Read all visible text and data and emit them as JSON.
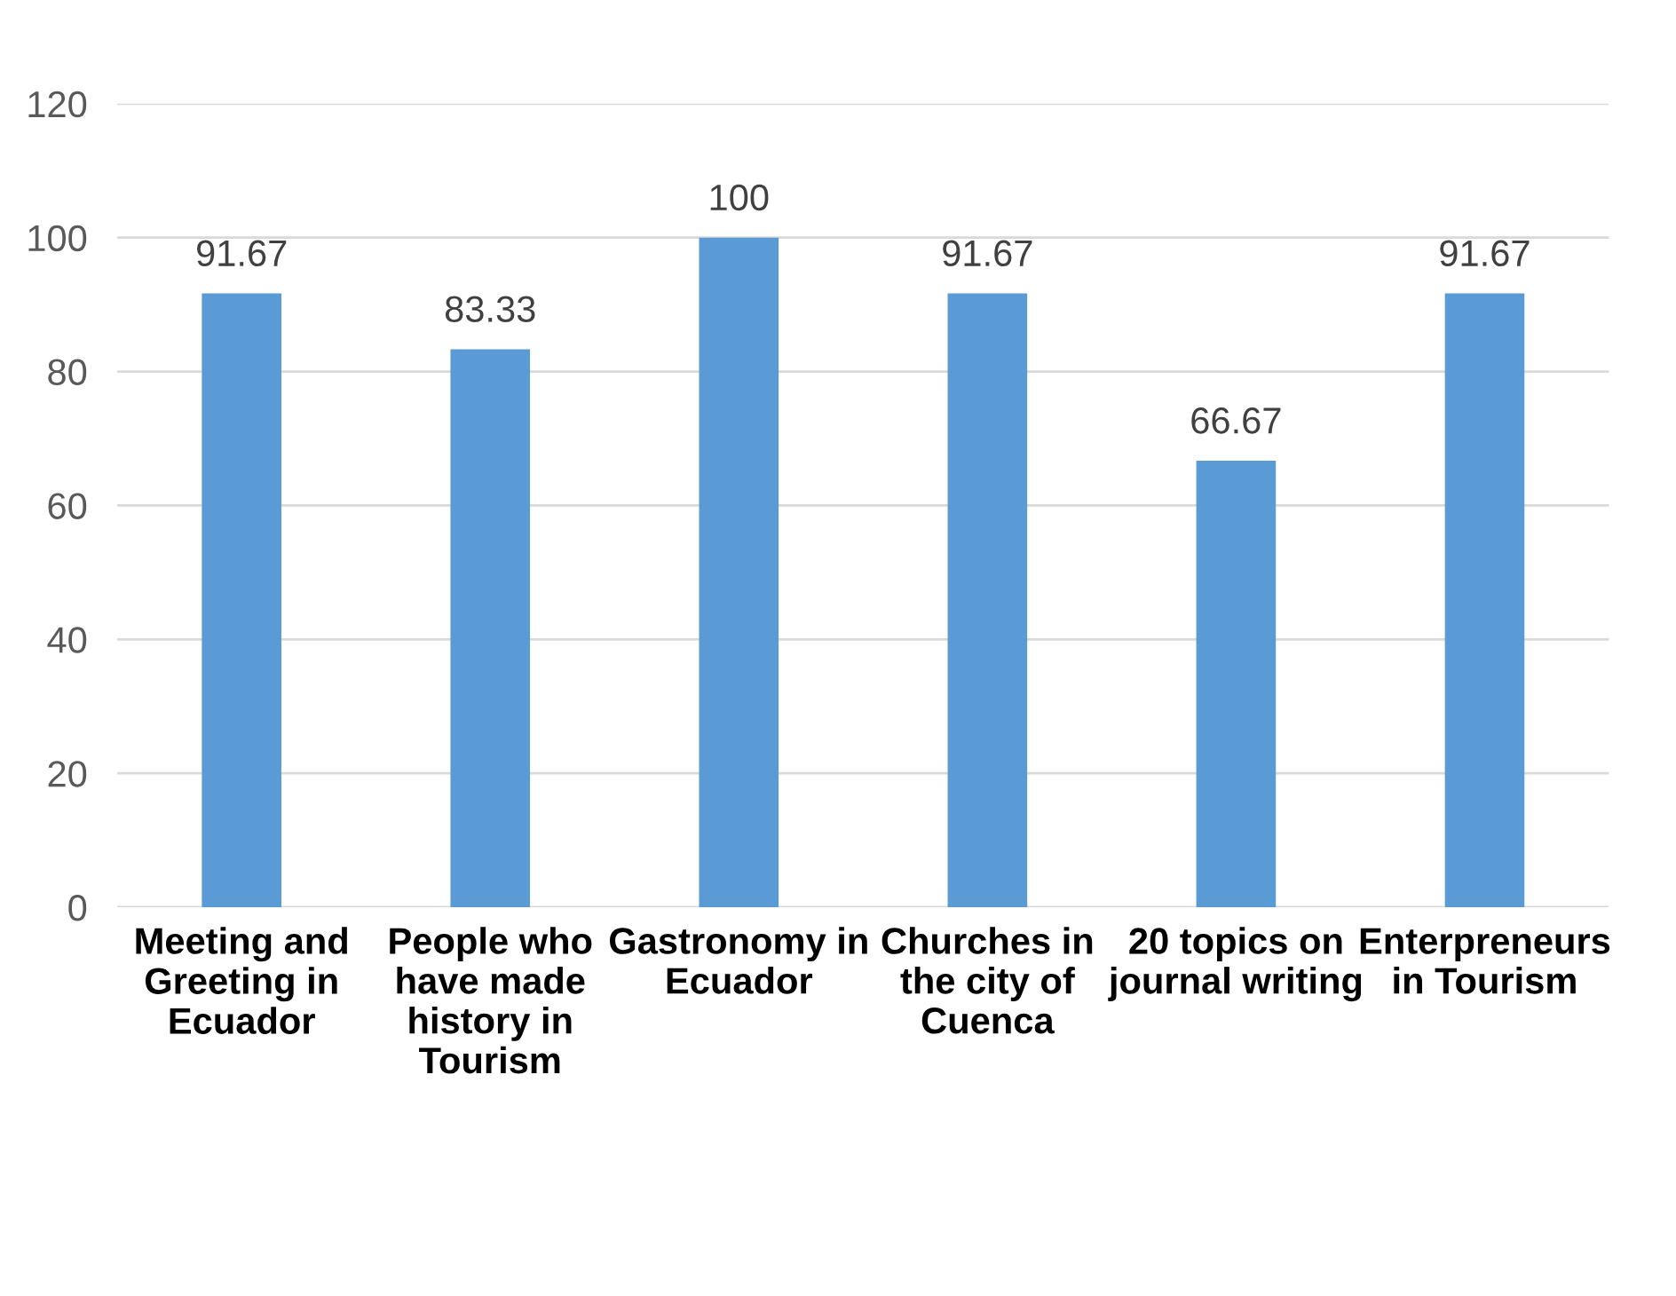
{
  "chart_data": {
    "type": "bar",
    "categories": [
      "Meeting and\nGreeting in\nEcuador",
      "People who\nhave made\nhistory in\nTourism",
      "Gastronomy in\nEcuador",
      "Churches in\nthe city of\nCuenca",
      "20 topics on\njournal writing",
      "Enterpreneurs\nin Tourism"
    ],
    "values": [
      91.67,
      83.33,
      100,
      91.67,
      66.67,
      91.67
    ],
    "color": "#5b9bd5",
    "ylim": [
      0,
      120
    ],
    "yticks": [
      0,
      20,
      40,
      60,
      80,
      100,
      120
    ],
    "grid": "y",
    "data_labels": true
  }
}
